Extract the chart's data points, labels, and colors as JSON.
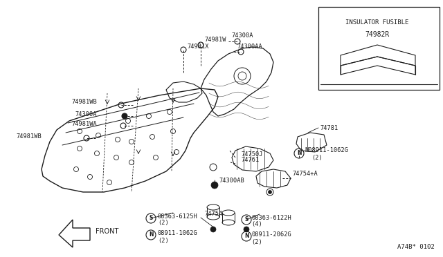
{
  "bg_color": "#ffffff",
  "lc": "#1a1a1a",
  "inset_title": "INSULATOR FUSIBLE",
  "inset_part": "74982R",
  "diagram_code": "A74B* 0102",
  "figsize": [
    6.4,
    3.72
  ],
  "dpi": 100
}
